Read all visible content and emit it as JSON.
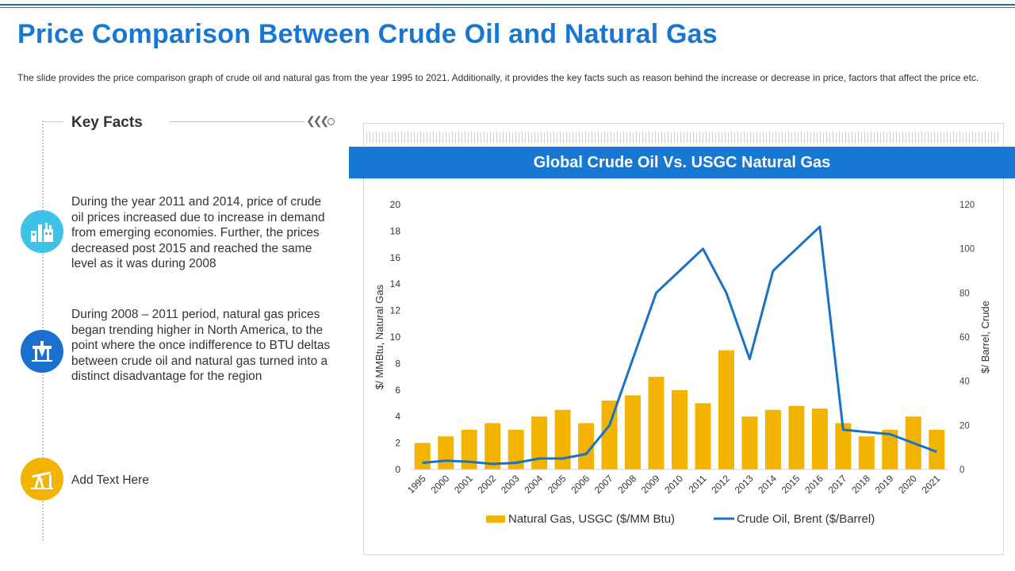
{
  "header": {
    "title": "Price Comparison Between Crude Oil and Natural Gas",
    "description": "The slide provides the price comparison graph of crude oil and natural gas from the year 1995 to 2021. Additionally, it provides the key facts such as reason behind the increase or decrease in price, factors that affect the price etc."
  },
  "key_facts": {
    "title": "Key Facts",
    "items": [
      {
        "icon": "factory-icon",
        "color": "#3cc3e6",
        "text": "During the year 2011 and 2014, price of crude oil prices increased due to increase in demand from emerging economies. Further, the prices decreased post 2015 and reached the same level as it was during 2008"
      },
      {
        "icon": "oil-rig-icon",
        "color": "#1a6fcf",
        "text": "During 2008 – 2011 period, natural gas prices began trending higher in North America, to the point where the once indifference to BTU deltas between crude oil and natural gas turned into a distinct disadvantage for the region"
      },
      {
        "icon": "pump-jack-icon",
        "color": "#f2b400",
        "text": "Add Text Here"
      }
    ]
  },
  "colors": {
    "title": "#1977d2",
    "banner": "#1778d4",
    "bar": "#f2b400",
    "line": "#1a72c7"
  },
  "chart_data": {
    "type": "bar+line",
    "title": "Global Crude Oil Vs. USGC Natural Gas",
    "categories": [
      "1995",
      "2000",
      "2001",
      "2002",
      "2003",
      "2004",
      "2005",
      "2006",
      "2007",
      "2008",
      "2009",
      "2010",
      "2011",
      "2012",
      "2013",
      "2014",
      "2015",
      "2016",
      "2017",
      "2018",
      "2019",
      "2020",
      "2021"
    ],
    "series": [
      {
        "name": "Natural Gas, USGC ($/MM Btu)",
        "type": "bar",
        "axis": "left",
        "values": [
          2,
          2.5,
          3,
          3.5,
          3,
          4,
          4.5,
          3.5,
          5.2,
          5.6,
          7,
          6,
          5,
          9,
          4,
          4.5,
          4.8,
          4.6,
          3.5,
          2.5,
          3,
          4,
          3
        ]
      },
      {
        "name": "Crude Oil, Brent ($/Barrel)",
        "type": "line",
        "axis": "right",
        "values": [
          3,
          4,
          3.5,
          2.5,
          3,
          5,
          5,
          7,
          20,
          50,
          80,
          90,
          100,
          80,
          50,
          90,
          100,
          110,
          18,
          17,
          16,
          12,
          8
        ]
      }
    ],
    "ylabel_left": "$/ MMBtu, Natural Gas",
    "ylabel_right": "$/ Barrel, Crude",
    "ylim_left": [
      0,
      20
    ],
    "ylim_right": [
      0,
      120
    ],
    "yticks_left": [
      "0",
      "2",
      "4",
      "6",
      "8",
      "10",
      "12",
      "14",
      "16",
      "18",
      "20"
    ],
    "yticks_right": [
      "0",
      "20",
      "40",
      "60",
      "80",
      "100",
      "120"
    ],
    "legend": "bottom",
    "grid": false
  }
}
